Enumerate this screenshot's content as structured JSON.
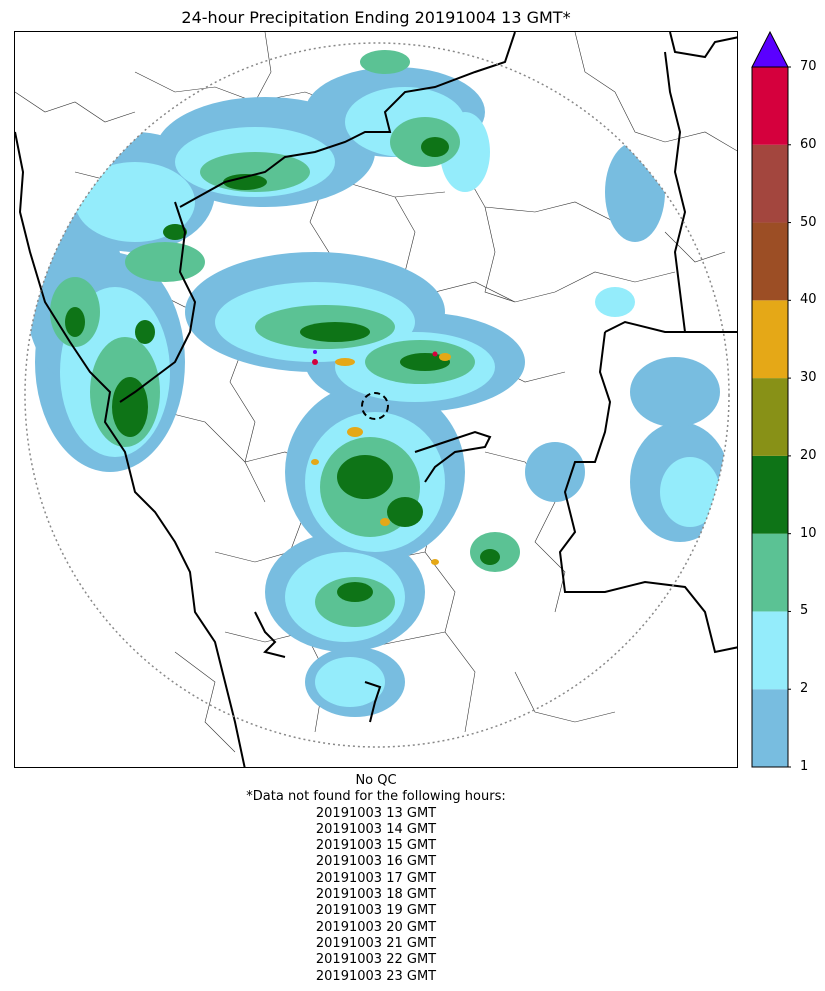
{
  "title": "24-hour Precipitation Ending 20191004 13 GMT*",
  "colorbar": {
    "ticks": [
      "1",
      "2",
      "5",
      "10",
      "20",
      "30",
      "40",
      "50",
      "60",
      "70"
    ],
    "colors": [
      "#78bde0",
      "#94ecfb",
      "#5bc294",
      "#0e7417",
      "#889117",
      "#e5a817",
      "#9c4e25",
      "#a3463e",
      "#d5003d"
    ],
    "extend_color": "#5a00ff"
  },
  "footer": {
    "qc": "No QC",
    "note": "*Data not found for the following hours:",
    "hours": [
      "20191003 13 GMT",
      "20191003 14 GMT",
      "20191003 15 GMT",
      "20191003 16 GMT",
      "20191003 17 GMT",
      "20191003 18 GMT",
      "20191003 19 GMT",
      "20191003 20 GMT",
      "20191003 21 GMT",
      "20191003 22 GMT",
      "20191003 23 GMT"
    ]
  }
}
